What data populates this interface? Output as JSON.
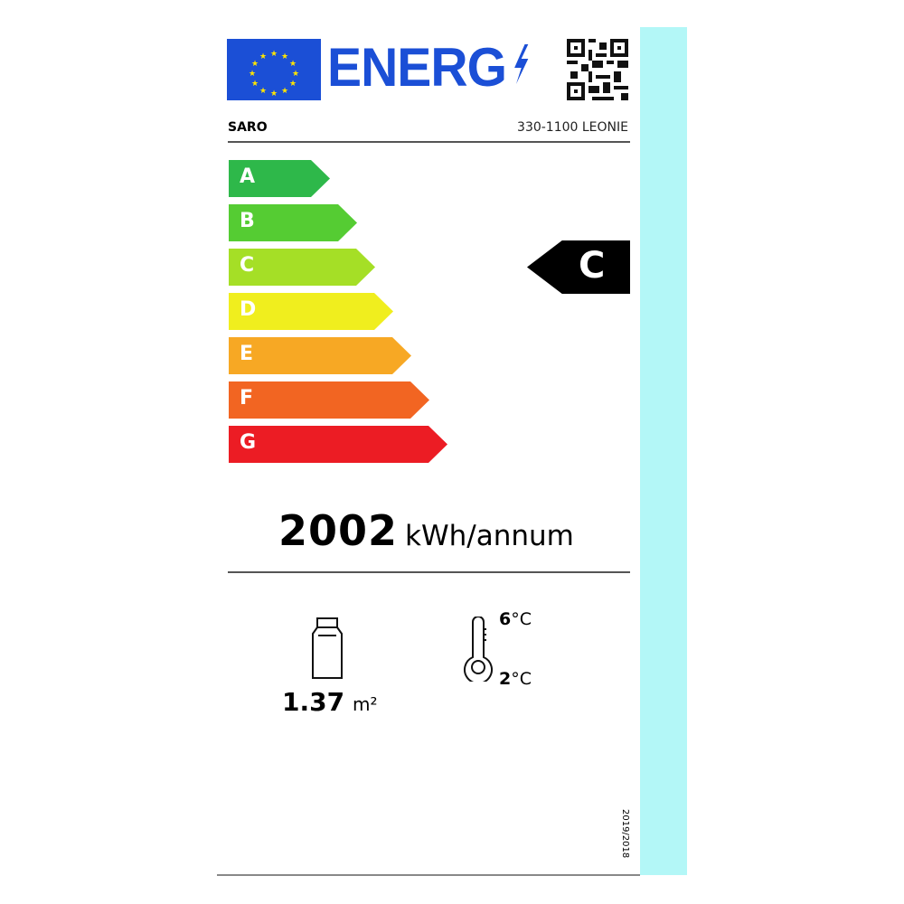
{
  "header": {
    "logo_text": "ENERG",
    "brand": "SARO",
    "model": "330-1100 LEONIE"
  },
  "scale": [
    {
      "letter": "A",
      "color": "#2eb84a"
    },
    {
      "letter": "B",
      "color": "#55cc33"
    },
    {
      "letter": "C",
      "color": "#a5df26"
    },
    {
      "letter": "D",
      "color": "#f0ee1e"
    },
    {
      "letter": "E",
      "color": "#f7a824"
    },
    {
      "letter": "F",
      "color": "#f26522"
    },
    {
      "letter": "G",
      "color": "#ec1c24"
    }
  ],
  "rating": {
    "class": "C"
  },
  "consumption": {
    "value": "2002",
    "unit": "kWh/annum"
  },
  "display_area": {
    "value": "1.37",
    "unit": "m²"
  },
  "temperature": {
    "max_value": "6",
    "min_value": "2",
    "unit": "°C"
  },
  "regulation": "2019/2018",
  "colors": {
    "eu_blue": "#1b4fd6",
    "strip": "#b3f7f7"
  }
}
